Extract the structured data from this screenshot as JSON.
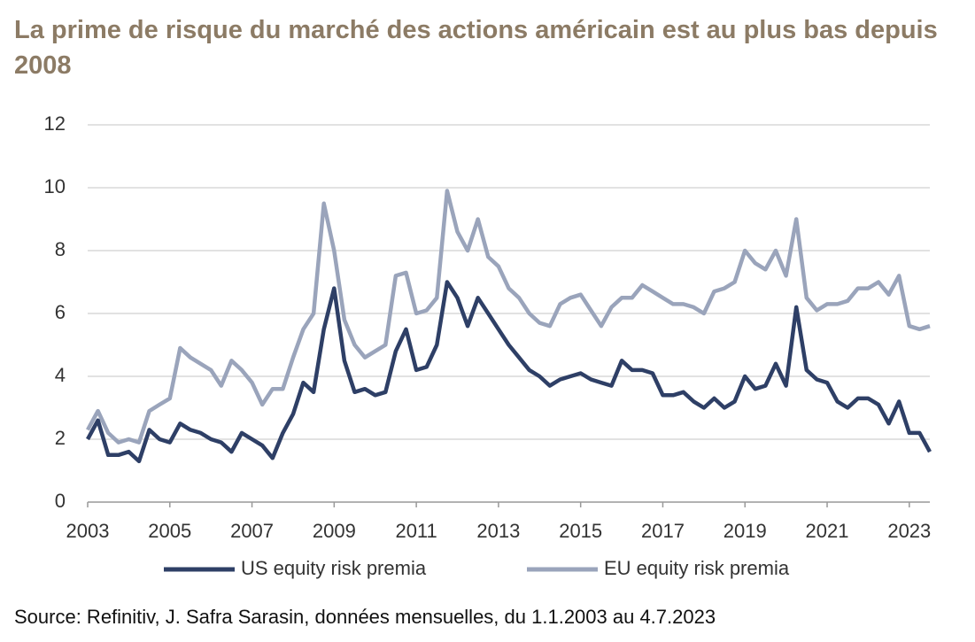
{
  "chart_data": {
    "type": "line",
    "title": "La prime de risque du marché des actions américain est au plus bas depuis 2008",
    "source": "Source: Refinitiv, J. Safra Sarasin, données mensuelles, du 1.1.2003 au 4.7.2023",
    "x": [
      2003.0,
      2003.25,
      2003.5,
      2003.75,
      2004.0,
      2004.25,
      2004.5,
      2004.75,
      2005.0,
      2005.25,
      2005.5,
      2005.75,
      2006.0,
      2006.25,
      2006.5,
      2006.75,
      2007.0,
      2007.25,
      2007.5,
      2007.75,
      2008.0,
      2008.25,
      2008.5,
      2008.75,
      2009.0,
      2009.25,
      2009.5,
      2009.75,
      2010.0,
      2010.25,
      2010.5,
      2010.75,
      2011.0,
      2011.25,
      2011.5,
      2011.75,
      2012.0,
      2012.25,
      2012.5,
      2012.75,
      2013.0,
      2013.25,
      2013.5,
      2013.75,
      2014.0,
      2014.25,
      2014.5,
      2014.75,
      2015.0,
      2015.25,
      2015.5,
      2015.75,
      2016.0,
      2016.25,
      2016.5,
      2016.75,
      2017.0,
      2017.25,
      2017.5,
      2017.75,
      2018.0,
      2018.25,
      2018.5,
      2018.75,
      2019.0,
      2019.25,
      2019.5,
      2019.75,
      2020.0,
      2020.25,
      2020.5,
      2020.75,
      2021.0,
      2021.25,
      2021.5,
      2021.75,
      2022.0,
      2022.25,
      2022.5,
      2022.75,
      2023.0,
      2023.25,
      2023.5
    ],
    "series": [
      {
        "name": "US equity risk premia",
        "color": "#2e3f66",
        "values": [
          2.0,
          2.6,
          1.5,
          1.5,
          1.6,
          1.3,
          2.3,
          2.0,
          1.9,
          2.5,
          2.3,
          2.2,
          2.0,
          1.9,
          1.6,
          2.2,
          2.0,
          1.8,
          1.4,
          2.2,
          2.8,
          3.8,
          3.5,
          5.5,
          6.8,
          4.5,
          3.5,
          3.6,
          3.4,
          3.5,
          4.8,
          5.5,
          4.2,
          4.3,
          5.0,
          7.0,
          6.5,
          5.6,
          6.5,
          6.0,
          5.5,
          5.0,
          4.6,
          4.2,
          4.0,
          3.7,
          3.9,
          4.0,
          4.1,
          3.9,
          3.8,
          3.7,
          4.5,
          4.2,
          4.2,
          4.1,
          3.4,
          3.4,
          3.5,
          3.2,
          3.0,
          3.3,
          3.0,
          3.2,
          4.0,
          3.6,
          3.7,
          4.4,
          3.7,
          6.2,
          4.2,
          3.9,
          3.8,
          3.2,
          3.0,
          3.3,
          3.3,
          3.1,
          2.5,
          3.2,
          2.2,
          2.2,
          1.6
        ]
      },
      {
        "name": "EU equity risk premia",
        "color": "#9aa4bb",
        "values": [
          2.3,
          2.9,
          2.2,
          1.9,
          2.0,
          1.9,
          2.9,
          3.1,
          3.3,
          4.9,
          4.6,
          4.4,
          4.2,
          3.7,
          4.5,
          4.2,
          3.8,
          3.1,
          3.6,
          3.6,
          4.6,
          5.5,
          6.0,
          9.5,
          8.0,
          5.8,
          5.0,
          4.6,
          4.8,
          5.0,
          7.2,
          7.3,
          6.0,
          6.1,
          6.5,
          9.9,
          8.6,
          8.0,
          9.0,
          7.8,
          7.5,
          6.8,
          6.5,
          6.0,
          5.7,
          5.6,
          6.3,
          6.5,
          6.6,
          6.1,
          5.6,
          6.2,
          6.5,
          6.5,
          6.9,
          6.7,
          6.5,
          6.3,
          6.3,
          6.2,
          6.0,
          6.7,
          6.8,
          7.0,
          8.0,
          7.6,
          7.4,
          8.0,
          7.2,
          9.0,
          6.5,
          6.1,
          6.3,
          6.3,
          6.4,
          6.8,
          6.8,
          7.0,
          6.6,
          7.2,
          5.6,
          5.5,
          5.6
        ]
      }
    ],
    "xlim": [
      2003,
      2023.5
    ],
    "xticks": [
      2003,
      2005,
      2007,
      2009,
      2011,
      2013,
      2015,
      2017,
      2019,
      2021,
      2023
    ],
    "ylim": [
      0,
      12
    ],
    "yticks": [
      0,
      2,
      4,
      6,
      8,
      10,
      12
    ],
    "grid": true,
    "legend": "bottom"
  }
}
